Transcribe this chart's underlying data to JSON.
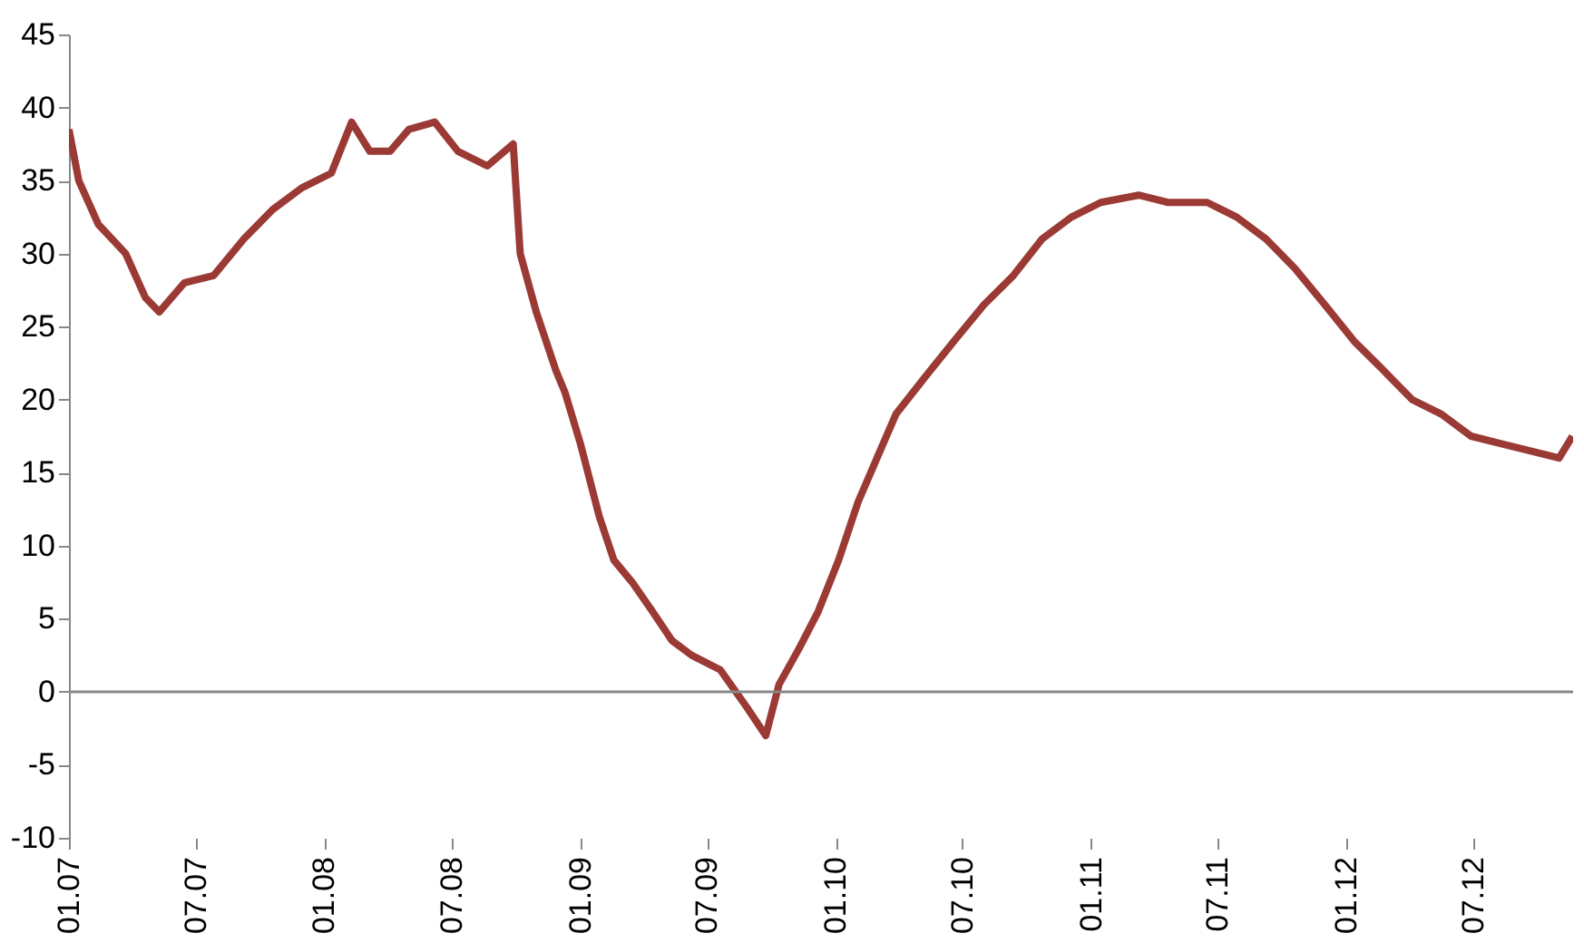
{
  "chart_data": {
    "type": "line",
    "x": [
      "2007-01-01",
      "2007-01-15",
      "2007-02-12",
      "2007-03-23",
      "2007-04-20",
      "2007-05-10",
      "2007-06-15",
      "2007-07-27",
      "2007-09-08",
      "2007-10-19",
      "2007-11-30",
      "2008-01-11",
      "2008-02-09",
      "2008-03-06",
      "2008-04-04",
      "2008-05-01",
      "2008-06-07",
      "2008-07-10",
      "2008-08-21",
      "2008-09-27",
      "2008-10-07",
      "2008-10-30",
      "2008-11-27",
      "2008-12-10",
      "2009-01-01",
      "2009-01-28",
      "2009-02-18",
      "2009-03-16",
      "2009-04-14",
      "2009-05-12",
      "2009-06-09",
      "2009-07-20",
      "2009-08-26",
      "2009-09-23",
      "2009-10-12",
      "2009-11-10",
      "2009-12-07",
      "2010-01-05",
      "2010-02-02",
      "2010-03-01",
      "2010-03-28",
      "2010-05-08",
      "2010-06-19",
      "2010-08-01",
      "2010-09-12",
      "2010-10-23",
      "2010-12-04",
      "2011-01-15",
      "2011-03-10",
      "2011-04-21",
      "2011-06-16",
      "2011-07-28",
      "2011-09-08",
      "2011-10-19",
      "2011-12-01",
      "2012-01-12",
      "2012-02-23",
      "2012-04-04",
      "2012-05-16",
      "2012-06-27",
      "2012-08-08",
      "2012-09-19",
      "2012-10-31",
      "2012-11-19"
    ],
    "series": [
      {
        "color": "#9b3a35",
        "values": [
          38.5,
          35,
          32,
          30,
          27,
          26,
          28,
          28.5,
          31,
          33,
          34.5,
          35.5,
          39,
          37,
          37,
          38.5,
          39,
          37,
          36,
          37.5,
          30,
          26,
          22,
          20.5,
          17,
          12,
          9,
          7.5,
          5.5,
          3.5,
          2.5,
          1.5,
          -1,
          -3,
          0.5,
          3,
          5.5,
          9,
          13,
          16,
          19,
          21.5,
          24,
          26.5,
          28.5,
          31,
          32.5,
          33.5,
          34,
          33.5,
          33.5,
          32.5,
          31,
          29,
          26.5,
          24,
          22,
          20,
          19,
          17.5,
          17,
          16.5,
          16,
          17.5
        ]
      }
    ],
    "xlim": [
      "2007-01-01",
      "2012-11-20"
    ],
    "xticks": [
      {
        "value": "2007-01-01",
        "label": "01.07"
      },
      {
        "value": "2007-07-01",
        "label": "07.07"
      },
      {
        "value": "2008-01-01",
        "label": "01.08"
      },
      {
        "value": "2008-07-01",
        "label": "07.08"
      },
      {
        "value": "2009-01-01",
        "label": "01.09"
      },
      {
        "value": "2009-07-01",
        "label": "07.09"
      },
      {
        "value": "2010-01-01",
        "label": "01.10"
      },
      {
        "value": "2010-07-01",
        "label": "07.10"
      },
      {
        "value": "2011-01-01",
        "label": "01.11"
      },
      {
        "value": "2011-07-01",
        "label": "07.11"
      },
      {
        "value": "2012-01-01",
        "label": "01.12"
      },
      {
        "value": "2012-07-01",
        "label": "07.12"
      }
    ],
    "ylim": [
      -10,
      45
    ],
    "yticks": [
      -10,
      -5,
      0,
      5,
      10,
      15,
      20,
      25,
      30,
      35,
      40,
      45
    ],
    "ref_lines": [
      {
        "axis": "y",
        "value": 0,
        "color": "#888888"
      }
    ],
    "grid": false,
    "marker": "none",
    "line_style": "solid"
  }
}
